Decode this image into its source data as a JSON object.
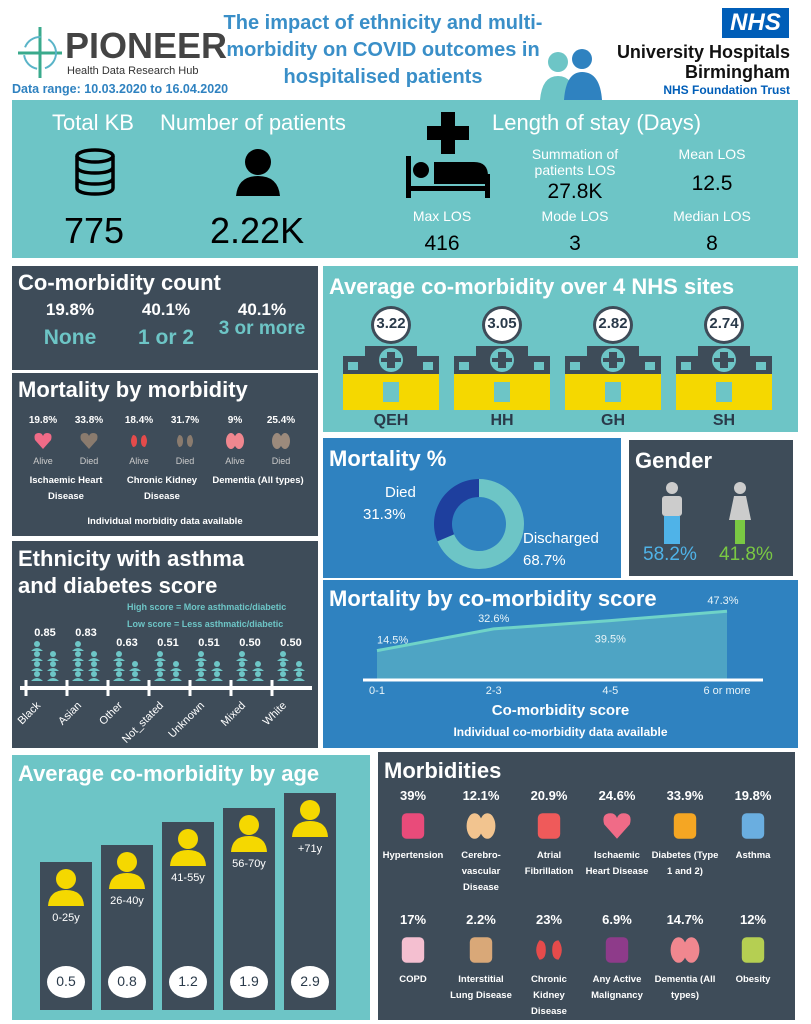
{
  "header": {
    "logo_name": "PIONEER",
    "logo_sub": "Health Data Research Hub",
    "data_range": "Data range: 10.03.2020 to 16.04.2020",
    "title": "The impact of ethnicity and multi-morbidity on COVID outcomes in hospitalised patients",
    "nhs_logo": "NHS",
    "trust_line1": "University Hospitals",
    "trust_line2": "Birmingham",
    "trust_line3": "NHS Foundation Trust",
    "colors": {
      "title": "#3a8fc8",
      "nhs": "#005eb8"
    }
  },
  "summary": {
    "total_kb_label": "Total KB",
    "total_kb": "775",
    "patients_label": "Number of patients",
    "patients": "2.22K",
    "los_title": "Length of stay (Days)",
    "sum_label": "Summation of patients LOS",
    "sum": "27.8K",
    "mean_label": "Mean LOS",
    "mean": "12.5",
    "max_label": "Max LOS",
    "max": "416",
    "mode_label": "Mode LOS",
    "mode": "3",
    "median_label": "Median LOS",
    "median": "8"
  },
  "comorbidity_count": {
    "title": "Co-morbidity count",
    "items": [
      {
        "pct": "19.8%",
        "label": "None"
      },
      {
        "pct": "40.1%",
        "label": "1 or 2"
      },
      {
        "pct": "40.1%",
        "label": "3 or more"
      }
    ]
  },
  "mortality_by_morbidity": {
    "title": "Mortality by morbidity",
    "groups": [
      {
        "name": "Ischaemic Heart Disease",
        "icon": "heart-icon",
        "alive": "19.8%",
        "died": "33.8%"
      },
      {
        "name": "Chronic Kidney Disease",
        "icon": "kidney-icon",
        "alive": "18.4%",
        "died": "31.7%"
      },
      {
        "name": "Dementia (All types)",
        "icon": "brain-icon",
        "alive": "9%",
        "died": "25.4%"
      }
    ],
    "alive_label": "Alive",
    "died_label": "Died",
    "note": "Individual morbidity data available"
  },
  "ethnicity": {
    "title": "Ethnicity with asthma and diabetes score",
    "legend_high": "High score = More asthmatic/diabetic",
    "legend_low": "Low score = Less asthmatic/diabetic",
    "items": [
      {
        "name": "Black",
        "score": "0.85"
      },
      {
        "name": "Asian",
        "score": "0.83"
      },
      {
        "name": "Other",
        "score": "0.63"
      },
      {
        "name": "Not_stated",
        "score": "0.51"
      },
      {
        "name": "Unknown",
        "score": "0.51"
      },
      {
        "name": "Mixed",
        "score": "0.50"
      },
      {
        "name": "White",
        "score": "0.50"
      }
    ]
  },
  "sites": {
    "title": "Average co-morbidity over 4 NHS sites",
    "items": [
      {
        "name": "QEH",
        "value": "3.22"
      },
      {
        "name": "HH",
        "value": "3.05"
      },
      {
        "name": "GH",
        "value": "2.82"
      },
      {
        "name": "SH",
        "value": "2.74"
      }
    ]
  },
  "mortality_pct": {
    "title": "Mortality %",
    "died_label": "Died",
    "died": "31.3%",
    "died_value": 31.3,
    "discharged_label": "Discharged",
    "discharged": "68.7%",
    "discharged_value": 68.7,
    "colors": {
      "died": "#1e3f9e",
      "discharged": "#6dc5c6"
    }
  },
  "gender": {
    "title": "Gender",
    "male": "58.2%",
    "female": "41.8%",
    "colors": {
      "male": "#4fb3e8",
      "female": "#7ac943"
    }
  },
  "mortality_score": {
    "title": "Mortality by co-morbidity score",
    "categories": [
      "0-1",
      "2-3",
      "4-5",
      "6 or more"
    ],
    "values": [
      14.5,
      32.6,
      39.5,
      47.3
    ],
    "labels": [
      "14.5%",
      "32.6%",
      "39.5%",
      "47.3%"
    ],
    "xlabel": "Co-morbidity score",
    "note": "Individual co-morbidity data available"
  },
  "age": {
    "title": "Average co-morbidity by age",
    "items": [
      {
        "name": "0-25y",
        "value": "0.5"
      },
      {
        "name": "26-40y",
        "value": "0.8"
      },
      {
        "name": "41-55y",
        "value": "1.2"
      },
      {
        "name": "56-70y",
        "value": "1.9"
      },
      {
        "name": "+71y",
        "value": "2.9"
      }
    ]
  },
  "morbidities": {
    "title": "Morbidities",
    "items": [
      {
        "pct": "39%",
        "name": "Hypertension",
        "icon": "heart-pressure-icon",
        "color": "#e94b7a"
      },
      {
        "pct": "12.1%",
        "name": "Cerebro-vascular Disease",
        "icon": "brain-icon",
        "color": "#f2c48f"
      },
      {
        "pct": "20.9%",
        "name": "Atrial Fibrillation",
        "icon": "heartbeat-icon",
        "color": "#ef5a5a"
      },
      {
        "pct": "24.6%",
        "name": "Ischaemic Heart Disease",
        "icon": "heart-icon",
        "color": "#f06b87"
      },
      {
        "pct": "33.9%",
        "name": "Diabetes (Type 1 and 2)",
        "icon": "glucose-meter-icon",
        "color": "#f5a623"
      },
      {
        "pct": "19.8%",
        "name": "Asthma",
        "icon": "inhaler-icon",
        "color": "#6aaee0"
      },
      {
        "pct": "17%",
        "name": "COPD",
        "icon": "lungs-icon",
        "color": "#f4bfd0"
      },
      {
        "pct": "2.2%",
        "name": "Interstitial Lung Disease",
        "icon": "lungs-icon",
        "color": "#d9a878"
      },
      {
        "pct": "23%",
        "name": "Chronic Kidney Disease",
        "icon": "kidney-icon",
        "color": "#e54b4b"
      },
      {
        "pct": "6.9%",
        "name": "Any Active Malignancy",
        "icon": "tumor-icon",
        "color": "#8e3b8a"
      },
      {
        "pct": "14.7%",
        "name": "Dementia (All types)",
        "icon": "brain-icon",
        "color": "#f0878f"
      },
      {
        "pct": "12%",
        "name": "Obesity",
        "icon": "scale-icon",
        "color": "#b5cf52"
      }
    ]
  }
}
